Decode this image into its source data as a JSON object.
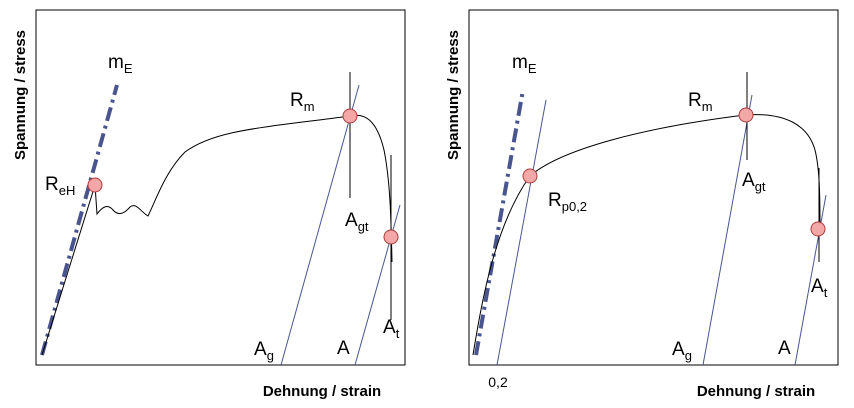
{
  "panels": [
    {
      "y_axis_label": "Spannung / stress",
      "x_axis_label": "Dehnung / strain",
      "labels": [
        {
          "main": "m",
          "sub": "E"
        },
        {
          "main": "R",
          "sub": "eH"
        },
        {
          "main": "R",
          "sub": "m"
        },
        {
          "main": "A",
          "sub": "gt"
        },
        {
          "main": "A",
          "sub": "t"
        },
        {
          "main": "A",
          "sub": "g"
        },
        {
          "main": "A"
        }
      ]
    },
    {
      "y_axis_label": "Spannung / stress",
      "x_axis_label": "Dehnung / strain",
      "labels": [
        {
          "main": "m",
          "sub": "E"
        },
        {
          "main": "R",
          "sub": "p0,2"
        },
        {
          "main": "R",
          "sub": "m"
        },
        {
          "main": "A",
          "sub": "gt"
        },
        {
          "main": "A",
          "sub": "t"
        },
        {
          "main": "A",
          "sub": "g"
        },
        {
          "main": "A"
        }
      ],
      "x_axis_tick": "0,2"
    }
  ]
}
